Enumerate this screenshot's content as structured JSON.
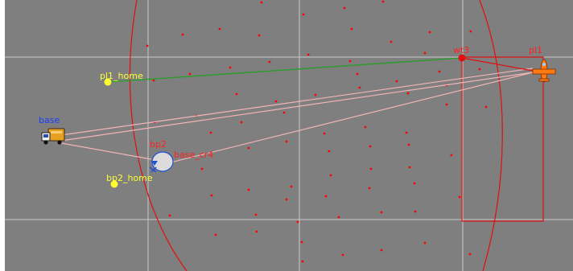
{
  "map": {
    "background_color": "#7f7f7f",
    "grid_color": "#c8c8c8",
    "waypoint_color": "#ff0000",
    "route_color": "#f2b5b5",
    "plan_color": "#22a022",
    "zone_color": "#e01010",
    "labels": {
      "pl1_home": "pl1_home",
      "bp2_home": "bp2_home",
      "base": "base",
      "bp2": "bp2",
      "base_cr4": "base_cr4",
      "wt3": "wt3",
      "pl1": "pl1"
    },
    "label_colors": {
      "home": "#ffff33",
      "base": "#1a3cff",
      "red": "#ff2020"
    },
    "icons": {
      "base": "truck-icon",
      "bp2": "blimp-icon",
      "pl1": "airplane-icon",
      "home": "home-marker-icon",
      "waypoint": "waypoint-icon"
    }
  }
}
